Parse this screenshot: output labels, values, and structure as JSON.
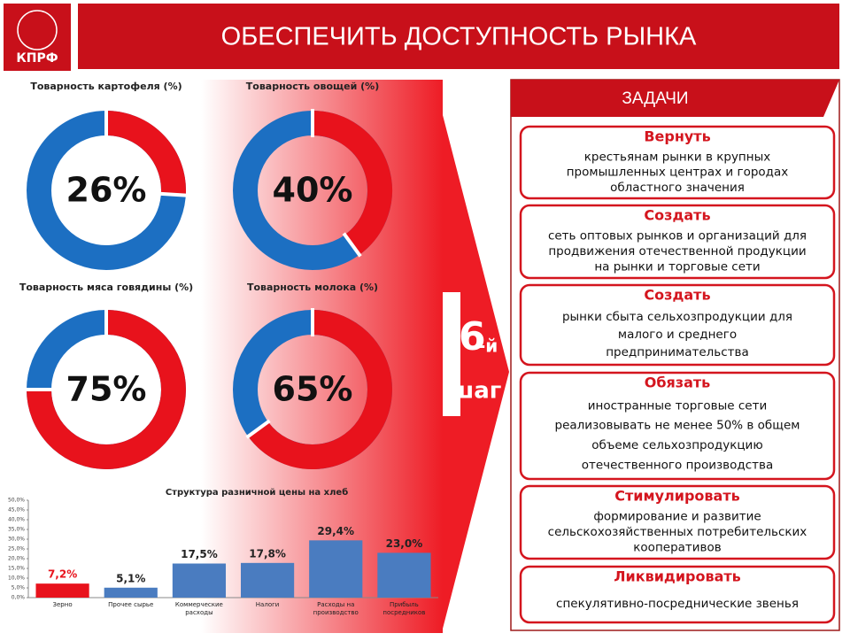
{
  "header": {
    "logo": "КПРФ",
    "title": "ОБЕСПЕЧИТЬ ДОСТУПНОСТЬ РЫНКА"
  },
  "chart_data": [
    {
      "type": "donut",
      "title": "Товарность картофеля (%)",
      "values": [
        26
      ],
      "value_labels": [
        "26%"
      ],
      "color": "#e8121c",
      "track_color": "#1c6fc2"
    },
    {
      "type": "donut",
      "title": "Товарность овощей (%)",
      "values": [
        40
      ],
      "value_labels": [
        "40%"
      ],
      "color": "#e8121c",
      "track_color": "#1c6fc2"
    },
    {
      "type": "donut",
      "title": "Товарность мяса говядины (%)",
      "values": [
        75
      ],
      "value_labels": [
        "75%"
      ],
      "color": "#e8121c",
      "track_color": "#1c6fc2"
    },
    {
      "type": "donut",
      "title": "Товарность молока (%)",
      "values": [
        65
      ],
      "value_labels": [
        "65%"
      ],
      "color": "#e8121c",
      "track_color": "#1c6fc2"
    },
    {
      "type": "bar",
      "title": "Структура разничной цены на хлеб",
      "categories": [
        "Зерно",
        "Прочее сырье",
        "Коммерческие расходы",
        "Налоги",
        "Расходы на производство",
        "Прибыль посредников"
      ],
      "values": [
        7.2,
        5.1,
        17.5,
        17.8,
        29.4,
        23.0
      ],
      "value_labels": [
        "7,2%",
        "5,1%",
        "17,5%",
        "17,8%",
        "29,4%",
        "23,0%"
      ],
      "colors": [
        "#e8121c",
        "#4a7cc0",
        "#4a7cc0",
        "#4a7cc0",
        "#4a7cc0",
        "#4a7cc0"
      ],
      "ylim": [
        0,
        50
      ],
      "yticks": [
        {
          "value": 0,
          "label": "0,0%"
        },
        {
          "value": 5,
          "label": "5,0%"
        },
        {
          "value": 10,
          "label": "10,0%"
        },
        {
          "value": 15,
          "label": "15,0%"
        },
        {
          "value": 20,
          "label": "20,0%"
        },
        {
          "value": 25,
          "label": "25,0%"
        },
        {
          "value": 30,
          "label": "30,0%"
        },
        {
          "value": 35,
          "label": "35,0%"
        },
        {
          "value": 40,
          "label": "40,0%"
        },
        {
          "value": 45,
          "label": "45,0%"
        },
        {
          "value": 50,
          "label": "50,0%"
        }
      ]
    }
  ],
  "step": {
    "number": "6",
    "suffix": "-й",
    "word": "шаг"
  },
  "tasks": {
    "title": "ЗАДАЧИ",
    "items": [
      {
        "verb": "Вернуть",
        "lines": [
          "крестьянам рынки в крупных",
          "промышленных центрах и городах",
          "областного значения"
        ]
      },
      {
        "verb": "Создать",
        "lines": [
          "сеть оптовых рынков и организаций для",
          "продвижения отечественной продукции",
          "на рынки и торговые сети"
        ]
      },
      {
        "verb": "Создать",
        "lines": [
          "рынки сбыта сельхозпродукции для",
          "малого и среднего",
          "предпринимательства"
        ]
      },
      {
        "verb": "Обязать",
        "lines": [
          "иностранные торговые сети",
          "реализовывать не менее 50% в общем",
          "объеме сельхозпродукцию",
          "отечественного производства"
        ]
      },
      {
        "verb": "Стимулировать",
        "lines": [
          "формирование и развитие",
          "сельскохозяйственных потребительских",
          "кооперативов"
        ]
      },
      {
        "verb": "Ликвидировать",
        "lines": [
          "спекулятивно-посреднические звенья"
        ]
      }
    ]
  }
}
